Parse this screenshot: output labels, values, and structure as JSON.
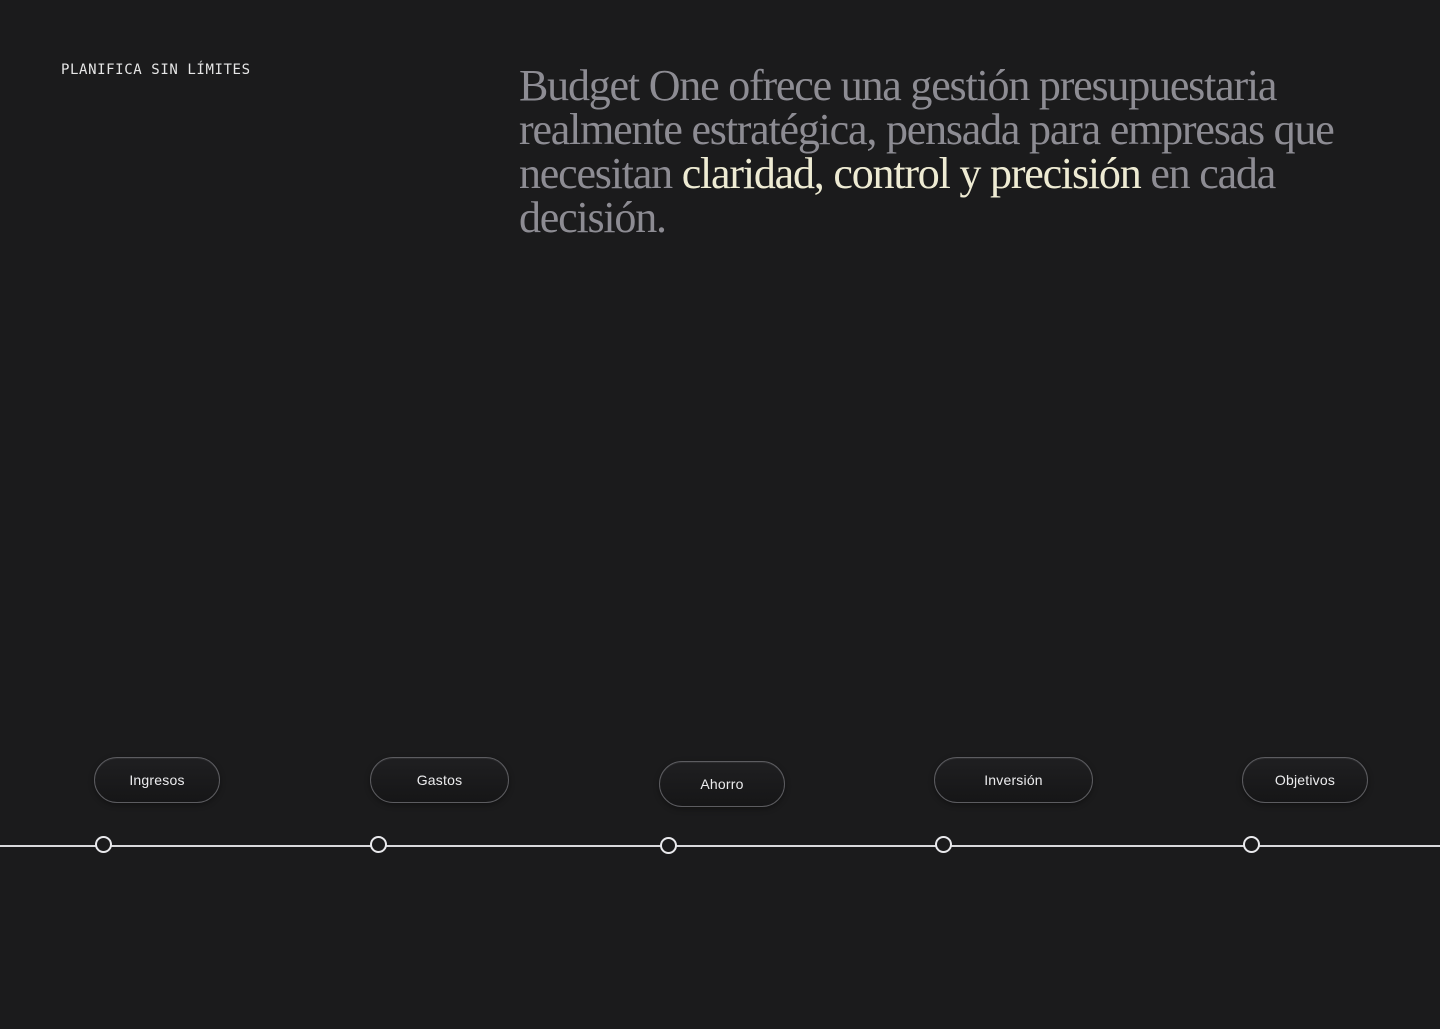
{
  "eyebrow": "PLANIFICA SIN LÍMITES",
  "headline": {
    "before": "Budget One ofrece una gestión presupuestaria realmente estratégica, pensada para empresas que necesitan ",
    "highlight": "claridad, control y precisión",
    "after": " en cada decisión."
  },
  "timeline": {
    "items": [
      {
        "label": "Ingresos"
      },
      {
        "label": "Gastos"
      },
      {
        "label": "Ahorro"
      },
      {
        "label": "Inversión"
      },
      {
        "label": "Objetivos"
      }
    ]
  },
  "colors": {
    "background": "#1b1b1c",
    "headline_muted": "#8d8c93",
    "headline_highlight": "#eeebd3",
    "line": "#d9d9dc"
  }
}
